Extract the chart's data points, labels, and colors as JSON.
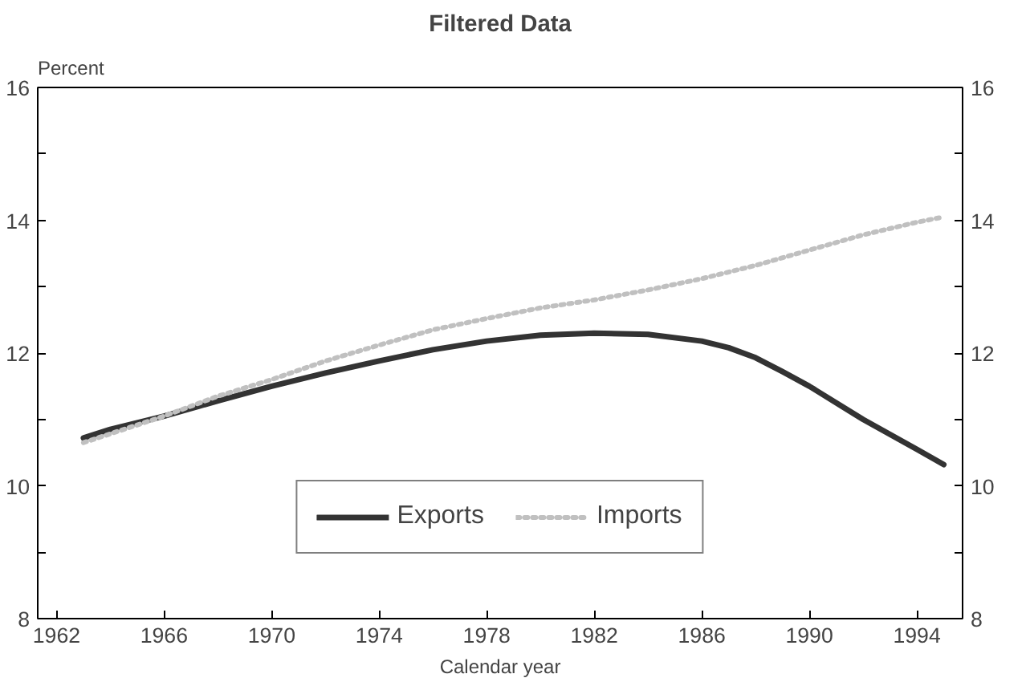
{
  "chart_data": {
    "type": "line",
    "title": "Filtered Data",
    "ylabel": "Percent",
    "xlabel": "Calendar year",
    "series": [
      {
        "name": "Exports",
        "color": "#333333",
        "line_style": "solid",
        "x": [
          1963,
          1964,
          1966,
          1968,
          1970,
          1972,
          1974,
          1976,
          1978,
          1980,
          1982,
          1984,
          1986,
          1987,
          1988,
          1989,
          1990,
          1992,
          1994,
          1995
        ],
        "values": [
          10.72,
          10.85,
          11.05,
          11.28,
          11.5,
          11.7,
          11.88,
          12.05,
          12.18,
          12.27,
          12.3,
          12.28,
          12.18,
          12.08,
          11.93,
          11.72,
          11.5,
          11.0,
          10.55,
          10.32
        ]
      },
      {
        "name": "Imports",
        "color": "#c0c0c0",
        "line_style": "dotted",
        "x": [
          1963,
          1966,
          1968,
          1970,
          1972,
          1974,
          1976,
          1978,
          1980,
          1982,
          1984,
          1986,
          1988,
          1990,
          1992,
          1994,
          1995
        ],
        "values": [
          10.65,
          11.05,
          11.35,
          11.6,
          11.88,
          12.12,
          12.35,
          12.52,
          12.68,
          12.8,
          12.95,
          13.12,
          13.32,
          13.55,
          13.78,
          13.97,
          14.05
        ]
      }
    ],
    "xlim": [
      1961.3,
      1995.7
    ],
    "xticks": [
      1962,
      1966,
      1970,
      1974,
      1978,
      1982,
      1986,
      1990,
      1994
    ],
    "ylim": [
      8,
      16
    ],
    "yticks": [
      8,
      {
        "value": 9,
        "label": null
      },
      10,
      {
        "value": 11,
        "label": null
      },
      12,
      {
        "value": 13,
        "label": null
      },
      14,
      {
        "value": 15,
        "label": null
      },
      16
    ],
    "y2lim": [
      8,
      16
    ],
    "y2ticks": [
      8,
      {
        "value": 9,
        "label": null
      },
      10,
      {
        "value": 11,
        "label": null
      },
      12,
      {
        "value": 13,
        "label": null
      },
      14,
      {
        "value": 15,
        "label": null
      },
      16
    ],
    "grid": false,
    "legend": "bottom",
    "marker": "none"
  }
}
